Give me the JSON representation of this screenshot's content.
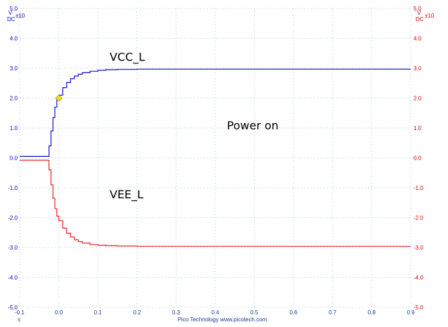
{
  "chart_data": {
    "type": "line",
    "title": "",
    "x_unit": "s",
    "footer": "Pico Technology   www.picotech.com",
    "xlim": [
      -0.1,
      0.9
    ],
    "ylim": [
      -5.0,
      5.0
    ],
    "x_ticks": [
      "-0.1",
      "0.0",
      "0.1",
      "0.2",
      "0.3",
      "0.4",
      "0.5",
      "0.6",
      "0.7",
      "0.8",
      "0.9"
    ],
    "y_ticks": [
      "5.0",
      "4.0",
      "3.0",
      "2.0",
      "1.0",
      "0.0",
      "-1.0",
      "-2.0",
      "-3.0",
      "-4.0",
      "-5.0"
    ],
    "left_axis": {
      "unit": "V",
      "coupling": "DC",
      "range": "±10",
      "color": "#0000cc"
    },
    "right_axis": {
      "unit": "V",
      "coupling": "DC",
      "range": "±10",
      "color": "#cc0000"
    },
    "grid": "dotted",
    "series": [
      {
        "name": "VCC_L",
        "color": "#1010cc",
        "points": [
          [
            -0.1,
            0.05
          ],
          [
            -0.028,
            0.05
          ],
          [
            -0.025,
            0.4
          ],
          [
            -0.02,
            0.9
          ],
          [
            -0.015,
            1.35
          ],
          [
            -0.01,
            1.7
          ],
          [
            -0.005,
            1.95
          ],
          [
            0.0,
            2.1
          ],
          [
            0.01,
            2.35
          ],
          [
            0.02,
            2.52
          ],
          [
            0.03,
            2.65
          ],
          [
            0.04,
            2.74
          ],
          [
            0.05,
            2.8
          ],
          [
            0.06,
            2.85
          ],
          [
            0.08,
            2.9
          ],
          [
            0.1,
            2.93
          ],
          [
            0.12,
            2.95
          ],
          [
            0.15,
            2.96
          ],
          [
            0.2,
            2.97
          ],
          [
            0.9,
            2.97
          ]
        ]
      },
      {
        "name": "VEE_L",
        "color": "#ee2222",
        "points": [
          [
            -0.1,
            -0.08
          ],
          [
            -0.028,
            -0.08
          ],
          [
            -0.025,
            -0.4
          ],
          [
            -0.02,
            -0.9
          ],
          [
            -0.015,
            -1.35
          ],
          [
            -0.01,
            -1.7
          ],
          [
            -0.005,
            -1.95
          ],
          [
            0.0,
            -2.1
          ],
          [
            0.01,
            -2.35
          ],
          [
            0.02,
            -2.52
          ],
          [
            0.03,
            -2.65
          ],
          [
            0.04,
            -2.74
          ],
          [
            0.05,
            -2.8
          ],
          [
            0.06,
            -2.85
          ],
          [
            0.08,
            -2.9
          ],
          [
            0.1,
            -2.92
          ],
          [
            0.12,
            -2.94
          ],
          [
            0.15,
            -2.95
          ],
          [
            0.2,
            -2.96
          ],
          [
            0.9,
            -2.96
          ]
        ]
      }
    ],
    "marker": {
      "x": 0.0,
      "y": 2.0,
      "color": "#f0e020"
    },
    "annotations": [
      {
        "text": "VCC_L",
        "x": 0.13,
        "y": 3.25
      },
      {
        "text": "Power on",
        "x": 0.43,
        "y": 0.95
      },
      {
        "text": "VEE_L",
        "x": 0.13,
        "y": -1.35
      }
    ]
  }
}
